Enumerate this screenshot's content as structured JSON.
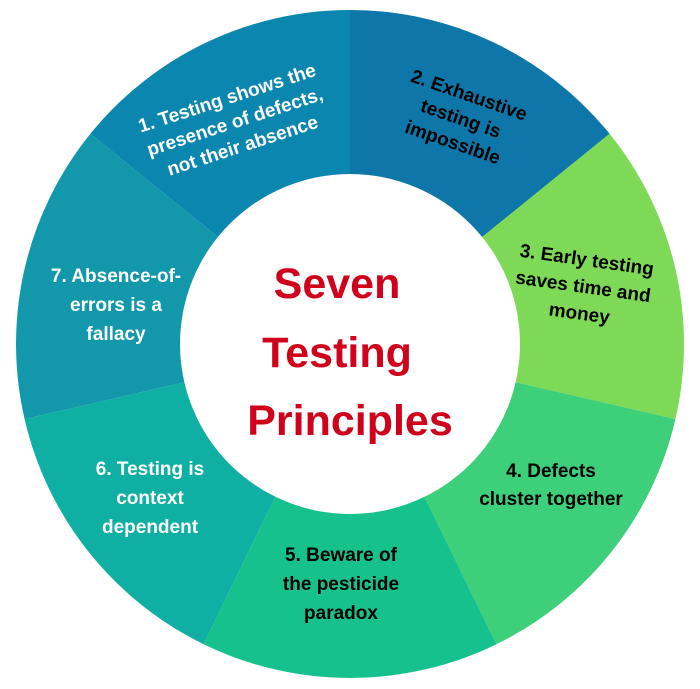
{
  "title": {
    "lines": [
      "Seven",
      "Testing",
      "Principles"
    ],
    "color": "#d0021b"
  },
  "segments": [
    {
      "id": 1,
      "lines": [
        "1. Testing shows the",
        "presence of defects,",
        "not their absence"
      ],
      "fill": "#0e76a8",
      "text_color": "#ffffff"
    },
    {
      "id": 2,
      "lines": [
        "2. Exhaustive",
        "testing is",
        "impossible"
      ],
      "fill": "#7ed957",
      "text_color": "#000000"
    },
    {
      "id": 3,
      "lines": [
        "3. Early testing",
        "saves time and",
        "money"
      ],
      "fill": "#3dcf79",
      "text_color": "#000000"
    },
    {
      "id": 4,
      "lines": [
        "4. Defects",
        "cluster together"
      ],
      "fill": "#17c18d",
      "text_color": "#000000"
    },
    {
      "id": 5,
      "lines": [
        "5. Beware of",
        "the pesticide",
        "paradox"
      ],
      "fill": "#0fb0a3",
      "text_color": "#000000"
    },
    {
      "id": 6,
      "lines": [
        "6. Testing is",
        "context",
        "dependent"
      ],
      "fill": "#1297ab",
      "text_color": "#ffffff"
    },
    {
      "id": 7,
      "lines": [
        "7. Absence-of-",
        "errors is a",
        "fallacy"
      ],
      "fill": "#0b86ae",
      "text_color": "#ffffff"
    }
  ]
}
